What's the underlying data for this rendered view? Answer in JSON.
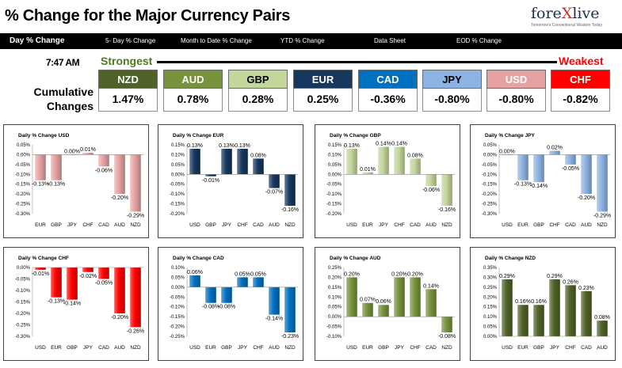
{
  "header": {
    "title": "% Change for the Major Currency Pairs",
    "logo_text": "forexlive",
    "logo_tagline": "Tomorrow's Conventional Wisdom Today"
  },
  "nav": [
    {
      "label": "Day % Change",
      "active": true
    },
    {
      "label": "5- Day % Change"
    },
    {
      "label": "Month to Date % Change"
    },
    {
      "label": "YTD % Change"
    },
    {
      "label": "Data Sheet"
    },
    {
      "label": "EOD % Change"
    }
  ],
  "summary": {
    "time": "7:47 AM",
    "strongest_label": "Strongest",
    "weakest_label": "Weakest",
    "cumulative_label_1": "Cumulative",
    "cumulative_label_2": "Changes",
    "currencies": [
      {
        "code": "NZD",
        "value": "1.47%",
        "color": "#4f6228",
        "text_color": "#ffffff"
      },
      {
        "code": "AUD",
        "value": "0.78%",
        "color": "#76923c",
        "text_color": "#ffffff"
      },
      {
        "code": "GBP",
        "value": "0.28%",
        "color": "#c3d69b",
        "text_color": "#000000"
      },
      {
        "code": "EUR",
        "value": "0.25%",
        "color": "#17375e",
        "text_color": "#ffffff"
      },
      {
        "code": "CAD",
        "value": "-0.36%",
        "color": "#0070c0",
        "text_color": "#ffffff"
      },
      {
        "code": "JPY",
        "value": "-0.80%",
        "color": "#8db3e2",
        "text_color": "#000000"
      },
      {
        "code": "USD",
        "value": "-0.80%",
        "color": "#e6a2a2",
        "text_color": "#ffffff"
      },
      {
        "code": "CHF",
        "value": "-0.82%",
        "color": "#ff0000",
        "text_color": "#ffffff"
      }
    ]
  },
  "chart_data": [
    {
      "type": "bar",
      "title": "Daily % Change USD",
      "categories": [
        "EUR",
        "GBP",
        "JPY",
        "CHF",
        "CAD",
        "AUD",
        "NZD"
      ],
      "values": [
        -0.13,
        -0.13,
        0.0,
        0.01,
        -0.06,
        -0.2,
        -0.29
      ],
      "labels": [
        "-0.13%",
        "-0.13%",
        "0.00%",
        "0.01%",
        "-0.06%",
        "-0.20%",
        "-0.29%"
      ],
      "ylim": [
        -0.3,
        0.05
      ],
      "ticks": [
        "0.05%",
        "0.00%",
        "-0.05%",
        "-0.10%",
        "-0.15%",
        "-0.20%",
        "-0.25%",
        "-0.30%"
      ],
      "color": "#e6a2a2"
    },
    {
      "type": "bar",
      "title": "Daily % Change EUR",
      "categories": [
        "USD",
        "GBP",
        "JPY",
        "CHF",
        "CAD",
        "AUD",
        "NZD"
      ],
      "values": [
        0.13,
        -0.01,
        0.13,
        0.13,
        0.08,
        -0.07,
        -0.16
      ],
      "labels": [
        "0.13%",
        "-0.01%",
        "0.13%",
        "0.13%",
        "0.08%",
        "-0.07%",
        "-0.16%"
      ],
      "ylim": [
        -0.2,
        0.15
      ],
      "ticks": [
        "0.15%",
        "0.10%",
        "0.05%",
        "0.00%",
        "-0.05%",
        "-0.10%",
        "-0.15%",
        "-0.20%"
      ],
      "color": "#17375e"
    },
    {
      "type": "bar",
      "title": "Daily % Change GBP",
      "categories": [
        "USD",
        "EUR",
        "JPY",
        "CHF",
        "CAD",
        "AUD",
        "NZD"
      ],
      "values": [
        0.13,
        0.01,
        0.14,
        0.14,
        0.08,
        -0.06,
        -0.16
      ],
      "labels": [
        "0.13%",
        "0.01%",
        "0.14%",
        "0.14%",
        "0.08%",
        "-0.06%",
        "-0.16%"
      ],
      "ylim": [
        -0.2,
        0.15
      ],
      "ticks": [
        "0.15%",
        "0.10%",
        "0.05%",
        "0.00%",
        "-0.05%",
        "-0.10%",
        "-0.15%",
        "-0.20%"
      ],
      "color": "#c3d69b"
    },
    {
      "type": "bar",
      "title": "Daily % Change JPY",
      "categories": [
        "USD",
        "EUR",
        "GBP",
        "CHF",
        "CAD",
        "AUD",
        "NZD"
      ],
      "values": [
        0.0,
        -0.13,
        -0.14,
        0.02,
        -0.05,
        -0.2,
        -0.29
      ],
      "labels": [
        "0.00%",
        "-0.13%",
        "-0.14%",
        "0.02%",
        "-0.05%",
        "-0.20%",
        "-0.29%"
      ],
      "ylim": [
        -0.3,
        0.05
      ],
      "ticks": [
        "0.05%",
        "0.00%",
        "-0.05%",
        "-0.10%",
        "-0.15%",
        "-0.20%",
        "-0.25%",
        "-0.30%"
      ],
      "color": "#8db3e2"
    },
    {
      "type": "bar",
      "title": "Daily % Change CHF",
      "categories": [
        "USD",
        "EUR",
        "GBP",
        "JPY",
        "CAD",
        "AUD",
        "NZD"
      ],
      "values": [
        -0.01,
        -0.13,
        -0.14,
        -0.02,
        -0.05,
        -0.2,
        -0.26
      ],
      "labels": [
        "-0.01%",
        "-0.13%",
        "-0.14%",
        "-0.02%",
        "-0.05%",
        "-0.20%",
        "-0.26%"
      ],
      "ylim": [
        -0.3,
        0.0
      ],
      "ticks": [
        "0.00%",
        "-0.05%",
        "-0.10%",
        "-0.15%",
        "-0.20%",
        "-0.25%",
        "-0.30%"
      ],
      "color": "#ff0000"
    },
    {
      "type": "bar",
      "title": "Daily % Change CAD",
      "categories": [
        "USD",
        "EUR",
        "GBP",
        "JPY",
        "CHF",
        "AUD",
        "NZD"
      ],
      "values": [
        0.06,
        -0.08,
        -0.08,
        0.05,
        0.05,
        -0.14,
        -0.23
      ],
      "labels": [
        "0.06%",
        "-0.08%",
        "-0.08%",
        "0.05%",
        "0.05%",
        "-0.14%",
        "-0.23%"
      ],
      "ylim": [
        -0.25,
        0.1
      ],
      "ticks": [
        "0.10%",
        "0.05%",
        "0.00%",
        "-0.05%",
        "-0.10%",
        "-0.15%",
        "-0.20%",
        "-0.25%"
      ],
      "color": "#0070c0"
    },
    {
      "type": "bar",
      "title": "Daily % Change AUD",
      "categories": [
        "USD",
        "EUR",
        "GBP",
        "JPY",
        "CHF",
        "CAD",
        "NZD"
      ],
      "values": [
        0.2,
        0.07,
        0.06,
        0.2,
        0.2,
        0.14,
        -0.08
      ],
      "labels": [
        "0.20%",
        "0.07%",
        "0.06%",
        "0.20%",
        "0.20%",
        "0.14%",
        "-0.08%"
      ],
      "ylim": [
        -0.1,
        0.25
      ],
      "ticks": [
        "0.25%",
        "0.20%",
        "0.15%",
        "0.10%",
        "0.05%",
        "0.00%",
        "-0.05%",
        "-0.10%"
      ],
      "color": "#76923c"
    },
    {
      "type": "bar",
      "title": "Daily % Change NZD",
      "categories": [
        "USD",
        "EUR",
        "GBP",
        "JPY",
        "CHF",
        "CAD",
        "AUD"
      ],
      "values": [
        0.29,
        0.16,
        0.16,
        0.29,
        0.26,
        0.23,
        0.08
      ],
      "labels": [
        "0.29%",
        "0.16%",
        "0.16%",
        "0.29%",
        "0.26%",
        "0.23%",
        "0.08%"
      ],
      "ylim": [
        0.0,
        0.35
      ],
      "ticks": [
        "0.35%",
        "0.30%",
        "0.25%",
        "0.20%",
        "0.15%",
        "0.10%",
        "0.05%",
        "0.00%"
      ],
      "color": "#4f6228"
    }
  ]
}
